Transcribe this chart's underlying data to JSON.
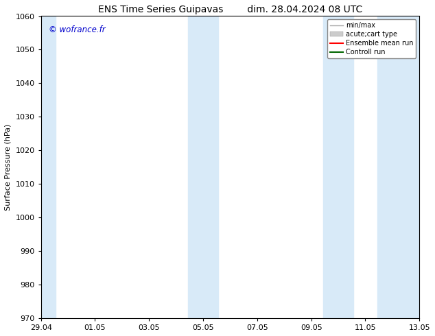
{
  "title_left": "ENS Time Series Guipavas",
  "title_right": "dim. 28.04.2024 08 UTC",
  "ylabel": "Surface Pressure (hPa)",
  "ylim": [
    970,
    1060
  ],
  "yticks": [
    970,
    980,
    990,
    1000,
    1010,
    1020,
    1030,
    1040,
    1050,
    1060
  ],
  "xtick_labels": [
    "29.04",
    "01.05",
    "03.05",
    "05.05",
    "07.05",
    "09.05",
    "11.05",
    "13.05"
  ],
  "xtick_positions": [
    0,
    2,
    4,
    6,
    8,
    10,
    12,
    14
  ],
  "xlim": [
    0,
    14
  ],
  "shaded_bands": [
    {
      "xstart": -0.05,
      "xend": 0.55
    },
    {
      "xstart": 5.45,
      "xend": 6.55
    },
    {
      "xstart": 10.45,
      "xend": 11.55
    },
    {
      "xstart": 12.45,
      "xend": 14.05
    }
  ],
  "shade_color": "#d8eaf8",
  "background_color": "#ffffff",
  "plot_bg_color": "#ffffff",
  "watermark": "© wofrance.fr",
  "watermark_color": "#0000cc",
  "legend_entries": [
    {
      "label": "min/max",
      "color": "#aaaaaa",
      "lw": 1.5
    },
    {
      "label": "acute;cart type",
      "color": "#cccccc",
      "lw": 6
    },
    {
      "label": "Ensemble mean run",
      "color": "#ff0000",
      "lw": 1.5
    },
    {
      "label": "Controll run",
      "color": "#006600",
      "lw": 1.5
    }
  ],
  "grid_color": "#cccccc",
  "spine_color": "#000000",
  "title_fontsize": 10,
  "label_fontsize": 8,
  "tick_fontsize": 8,
  "legend_fontsize": 7
}
